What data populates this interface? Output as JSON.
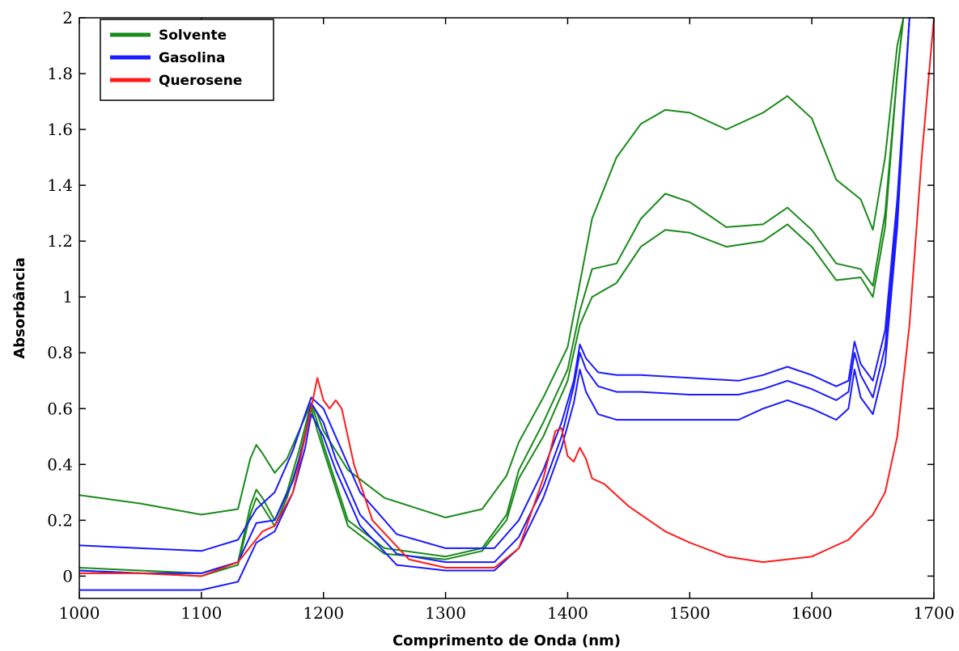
{
  "chart_data": {
    "type": "line",
    "xlabel": "Comprimento de Onda (nm)",
    "ylabel": "Absorbância",
    "xlim": [
      1000,
      1700
    ],
    "ylim": [
      -0.08,
      2.0
    ],
    "x_ticks": [
      1000,
      1100,
      1200,
      1300,
      1400,
      1500,
      1600,
      1700
    ],
    "x_tick_labels": [
      "1000",
      "1100",
      "1200",
      "1300",
      "1400",
      "1500",
      "1600",
      "1700"
    ],
    "y_ticks": [
      0,
      0.2,
      0.4,
      0.6,
      0.8,
      1.0,
      1.2,
      1.4,
      1.6,
      1.8,
      2.0
    ],
    "y_tick_labels": [
      "0",
      "0.2",
      "0.4",
      "0.6",
      "0.8",
      "1",
      "1.2",
      "1.4",
      "1.6",
      "1.8",
      "2"
    ],
    "grid": false,
    "legend_position": "top-left",
    "colors": {
      "Solvente": "#1a8a1a",
      "Gasolina": "#1a1aff",
      "Querosene": "#ff1a1a"
    },
    "series": [
      {
        "name": "Solvente",
        "x": [
          1000,
          1050,
          1100,
          1130,
          1140,
          1145,
          1150,
          1160,
          1170,
          1180,
          1190,
          1195,
          1200,
          1220,
          1250,
          1300,
          1330,
          1350,
          1360,
          1380,
          1400,
          1410,
          1420,
          1440,
          1460,
          1480,
          1500,
          1530,
          1560,
          1580,
          1600,
          1620,
          1640,
          1650,
          1660,
          1670,
          1675
        ],
        "values": [
          0.29,
          0.26,
          0.22,
          0.24,
          0.42,
          0.47,
          0.44,
          0.37,
          0.42,
          0.52,
          0.62,
          0.58,
          0.52,
          0.38,
          0.28,
          0.21,
          0.24,
          0.36,
          0.48,
          0.64,
          0.82,
          1.05,
          1.28,
          1.5,
          1.62,
          1.67,
          1.66,
          1.6,
          1.66,
          1.72,
          1.64,
          1.42,
          1.35,
          1.24,
          1.5,
          1.9,
          2.0
        ]
      },
      {
        "name": "Solvente",
        "x": [
          1000,
          1050,
          1100,
          1130,
          1140,
          1145,
          1150,
          1160,
          1170,
          1180,
          1190,
          1195,
          1200,
          1220,
          1250,
          1300,
          1330,
          1350,
          1360,
          1380,
          1400,
          1410,
          1420,
          1440,
          1460,
          1480,
          1500,
          1530,
          1560,
          1580,
          1600,
          1620,
          1640,
          1650,
          1660,
          1670,
          1675
        ],
        "values": [
          0.03,
          0.02,
          0.01,
          0.05,
          0.25,
          0.31,
          0.28,
          0.2,
          0.3,
          0.45,
          0.62,
          0.55,
          0.47,
          0.2,
          0.1,
          0.07,
          0.1,
          0.22,
          0.38,
          0.55,
          0.74,
          0.95,
          1.1,
          1.12,
          1.28,
          1.37,
          1.34,
          1.25,
          1.26,
          1.32,
          1.24,
          1.12,
          1.1,
          1.04,
          1.3,
          1.8,
          2.0
        ]
      },
      {
        "name": "Solvente",
        "x": [
          1000,
          1050,
          1100,
          1130,
          1140,
          1145,
          1150,
          1160,
          1170,
          1180,
          1190,
          1195,
          1200,
          1220,
          1250,
          1300,
          1330,
          1350,
          1360,
          1380,
          1400,
          1410,
          1420,
          1440,
          1460,
          1480,
          1500,
          1530,
          1560,
          1580,
          1600,
          1620,
          1640,
          1650,
          1660,
          1670,
          1675
        ],
        "values": [
          0.02,
          0.01,
          0.0,
          0.04,
          0.22,
          0.28,
          0.25,
          0.18,
          0.28,
          0.42,
          0.6,
          0.52,
          0.45,
          0.18,
          0.08,
          0.06,
          0.09,
          0.2,
          0.35,
          0.5,
          0.7,
          0.9,
          1.0,
          1.05,
          1.18,
          1.24,
          1.23,
          1.18,
          1.2,
          1.26,
          1.18,
          1.06,
          1.07,
          1.0,
          1.25,
          1.8,
          2.0
        ]
      },
      {
        "name": "Gasolina",
        "x": [
          1000,
          1050,
          1100,
          1130,
          1145,
          1160,
          1175,
          1185,
          1190,
          1200,
          1210,
          1230,
          1260,
          1300,
          1340,
          1360,
          1380,
          1395,
          1405,
          1410,
          1415,
          1425,
          1440,
          1460,
          1500,
          1540,
          1560,
          1580,
          1600,
          1620,
          1630,
          1635,
          1640,
          1650,
          1660,
          1670,
          1680
        ],
        "values": [
          0.11,
          0.1,
          0.09,
          0.13,
          0.24,
          0.3,
          0.45,
          0.58,
          0.64,
          0.6,
          0.5,
          0.3,
          0.15,
          0.1,
          0.1,
          0.2,
          0.38,
          0.55,
          0.7,
          0.83,
          0.78,
          0.73,
          0.72,
          0.72,
          0.71,
          0.7,
          0.72,
          0.75,
          0.72,
          0.68,
          0.7,
          0.84,
          0.76,
          0.7,
          0.88,
          1.35,
          2.0
        ]
      },
      {
        "name": "Gasolina",
        "x": [
          1000,
          1050,
          1100,
          1130,
          1145,
          1160,
          1175,
          1185,
          1190,
          1200,
          1210,
          1230,
          1260,
          1300,
          1340,
          1360,
          1380,
          1395,
          1405,
          1410,
          1415,
          1425,
          1440,
          1460,
          1500,
          1540,
          1560,
          1580,
          1600,
          1620,
          1630,
          1635,
          1640,
          1650,
          1660,
          1670,
          1680
        ],
        "values": [
          0.02,
          0.01,
          0.01,
          0.05,
          0.19,
          0.2,
          0.34,
          0.5,
          0.62,
          0.55,
          0.42,
          0.22,
          0.08,
          0.05,
          0.05,
          0.14,
          0.32,
          0.5,
          0.68,
          0.8,
          0.74,
          0.68,
          0.66,
          0.66,
          0.65,
          0.65,
          0.67,
          0.7,
          0.67,
          0.63,
          0.66,
          0.8,
          0.72,
          0.64,
          0.82,
          1.3,
          2.0
        ]
      },
      {
        "name": "Gasolina",
        "x": [
          1000,
          1050,
          1100,
          1130,
          1145,
          1160,
          1175,
          1185,
          1190,
          1200,
          1210,
          1230,
          1260,
          1300,
          1340,
          1360,
          1380,
          1395,
          1405,
          1410,
          1415,
          1425,
          1440,
          1460,
          1500,
          1540,
          1560,
          1580,
          1600,
          1620,
          1630,
          1635,
          1640,
          1650,
          1660,
          1670,
          1680
        ],
        "values": [
          -0.05,
          -0.05,
          -0.05,
          -0.02,
          0.12,
          0.16,
          0.3,
          0.46,
          0.58,
          0.5,
          0.38,
          0.18,
          0.04,
          0.02,
          0.02,
          0.1,
          0.28,
          0.46,
          0.62,
          0.74,
          0.66,
          0.58,
          0.56,
          0.56,
          0.56,
          0.56,
          0.6,
          0.63,
          0.6,
          0.56,
          0.6,
          0.74,
          0.64,
          0.58,
          0.76,
          1.25,
          2.0
        ]
      },
      {
        "name": "Querosene",
        "x": [
          1000,
          1050,
          1100,
          1130,
          1150,
          1160,
          1175,
          1185,
          1195,
          1200,
          1205,
          1210,
          1215,
          1225,
          1240,
          1270,
          1300,
          1340,
          1360,
          1380,
          1390,
          1395,
          1400,
          1405,
          1410,
          1415,
          1420,
          1430,
          1450,
          1480,
          1500,
          1530,
          1560,
          1600,
          1630,
          1650,
          1660,
          1670,
          1680,
          1690,
          1700
        ],
        "values": [
          0.01,
          0.01,
          0.0,
          0.05,
          0.16,
          0.18,
          0.3,
          0.5,
          0.71,
          0.63,
          0.6,
          0.63,
          0.6,
          0.4,
          0.2,
          0.06,
          0.03,
          0.03,
          0.1,
          0.35,
          0.52,
          0.53,
          0.43,
          0.41,
          0.46,
          0.42,
          0.35,
          0.33,
          0.25,
          0.16,
          0.12,
          0.07,
          0.05,
          0.07,
          0.13,
          0.22,
          0.3,
          0.5,
          0.9,
          1.5,
          2.0
        ]
      }
    ]
  }
}
